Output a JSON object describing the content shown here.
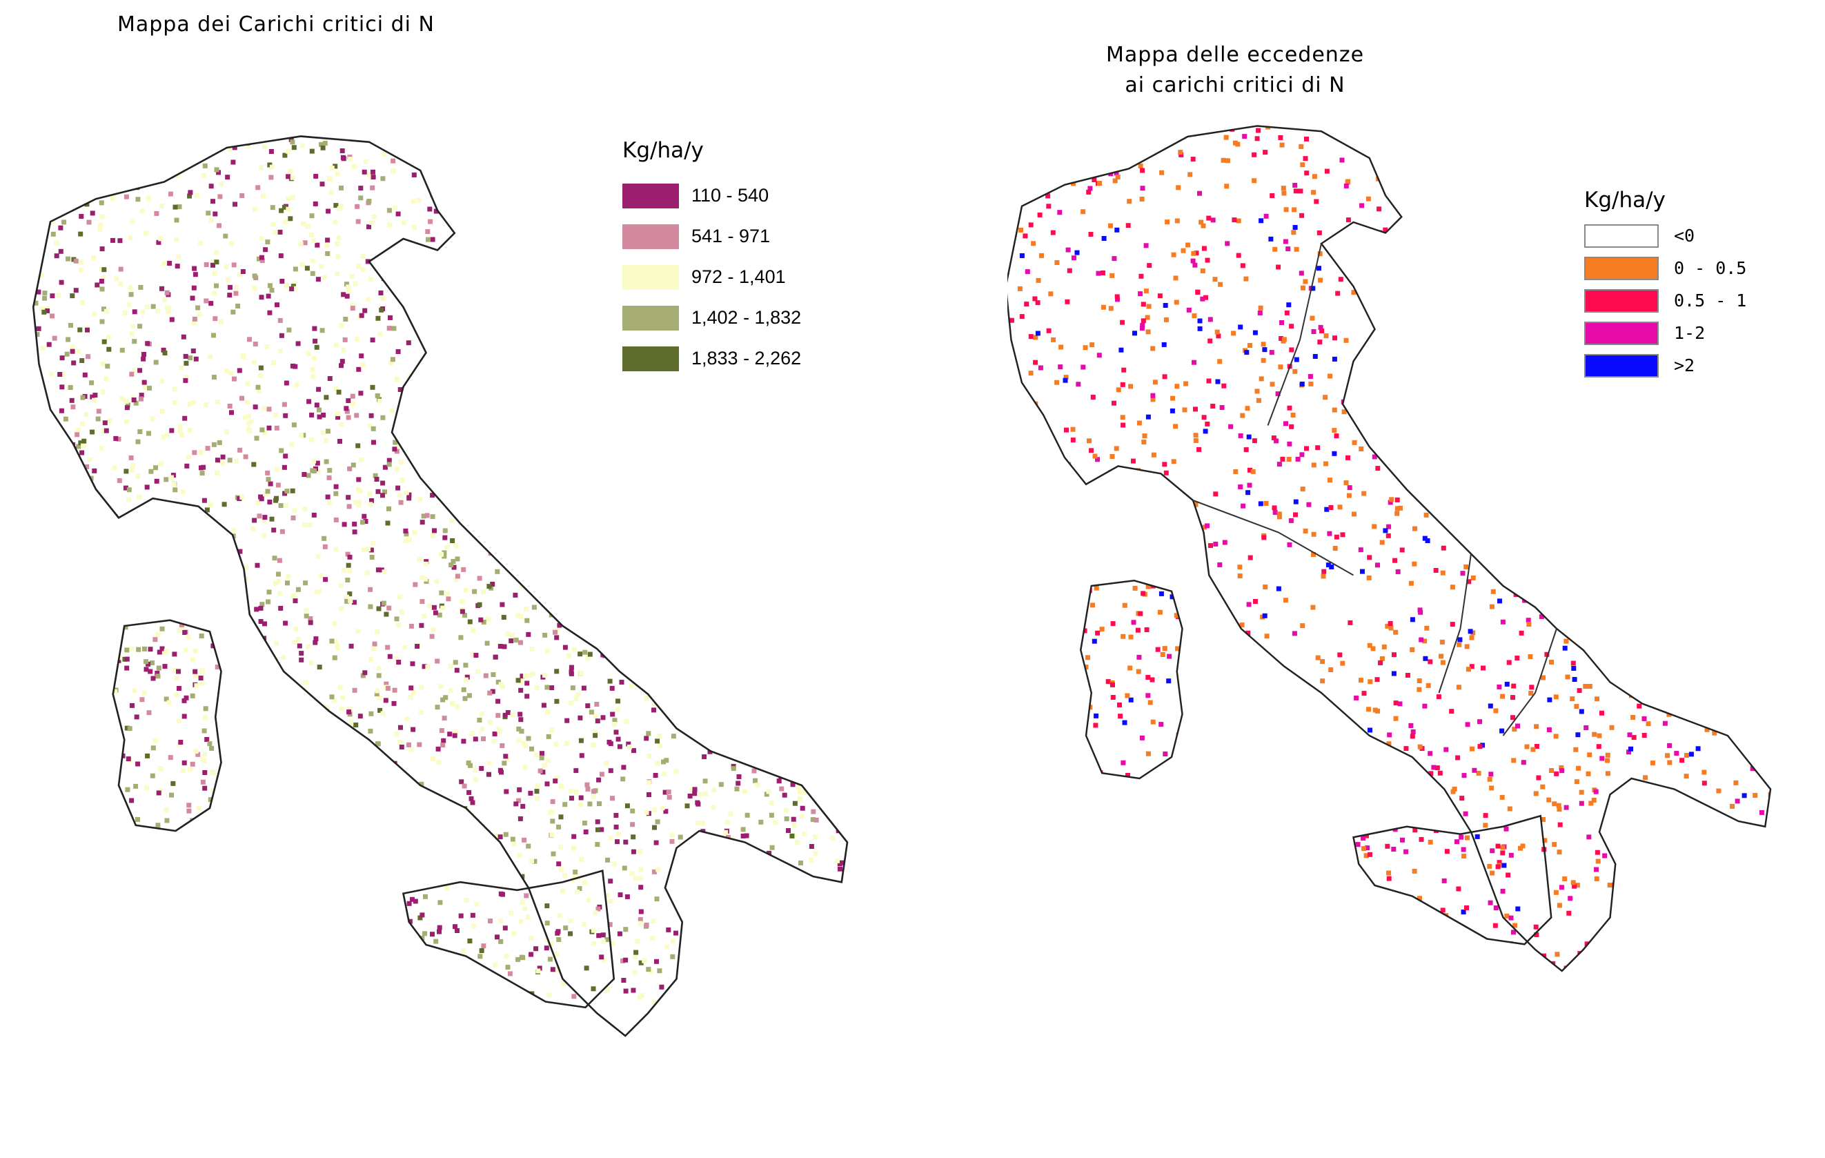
{
  "left_map": {
    "title": "Mappa dei Carichi critici di N",
    "legend_title": "Kg/ha/y",
    "legend": [
      {
        "label": "110 - 540",
        "color": "#9b1f6e"
      },
      {
        "label": "541 - 971",
        "color": "#d48a9e"
      },
      {
        "label": "972 - 1,401",
        "color": "#fbfbc8"
      },
      {
        "label": "1,402 - 1,832",
        "color": "#a5ad72"
      },
      {
        "label": "1,833 - 2,262",
        "color": "#5f6d2c"
      }
    ]
  },
  "right_map": {
    "title_line1": "Mappa delle eccedenze",
    "title_line2": "ai carichi critici di N",
    "legend_title": "Kg/ha/y",
    "legend": [
      {
        "label": "<0",
        "color": "#ffffff"
      },
      {
        "label": "0 - 0.5",
        "color": "#f57c22"
      },
      {
        "label": "0.5 - 1",
        "color": "#ff0a4f"
      },
      {
        "label": "1-2",
        "color": "#e60aa8"
      },
      {
        "label": ">2",
        "color": "#0a0aff"
      }
    ]
  }
}
